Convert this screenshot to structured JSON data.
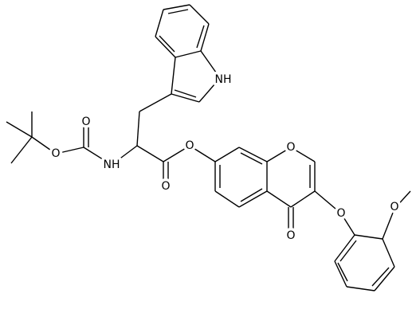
{
  "atoms": [
    {
      "label": "NH"
    },
    {
      "label": "O"
    },
    {
      "label": "O"
    },
    {
      "label": "NH"
    },
    {
      "label": "O"
    },
    {
      "label": "O"
    },
    {
      "label": "O"
    },
    {
      "label": "O"
    },
    {
      "label": "O"
    },
    {
      "label": "O"
    }
  ]
}
